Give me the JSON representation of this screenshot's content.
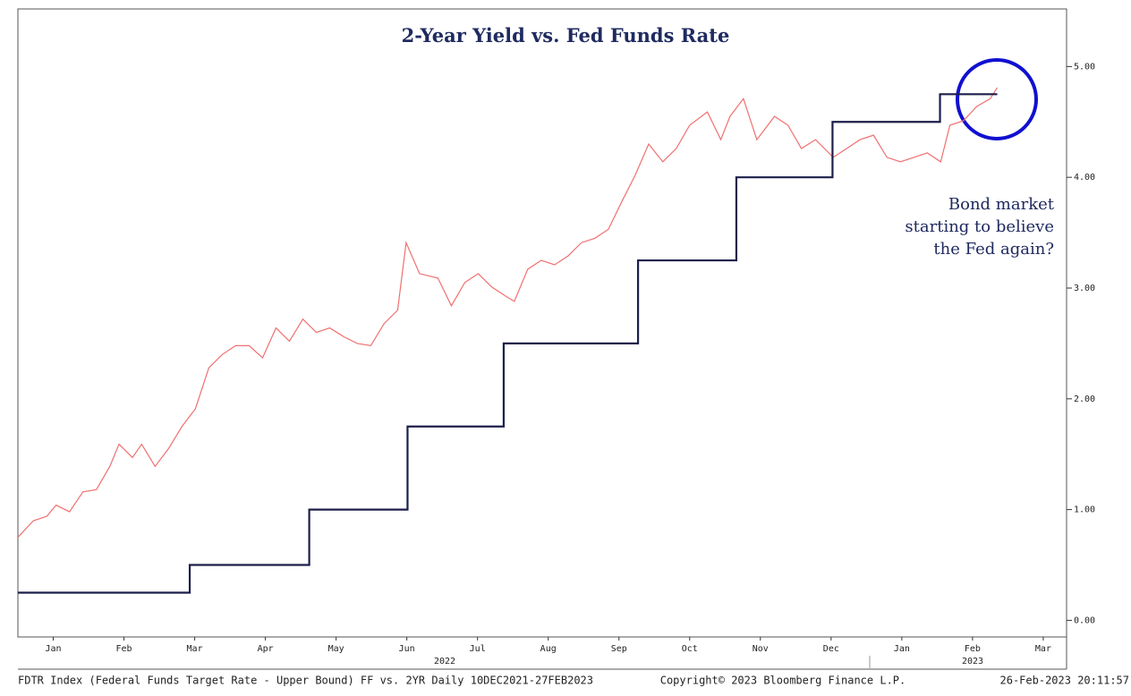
{
  "chart_data": {
    "type": "line",
    "title": "2-Year Yield vs. Fed Funds Rate",
    "annotation": [
      "Bond market",
      "starting to believe",
      "the Fed again?"
    ],
    "footer": [
      "FDTR Index (Federal Funds Target Rate - Upper Bound) FF vs. 2YR  Daily 10DEC2021-27FEB2023",
      "Copyright© 2023 Bloomberg Finance L.P.",
      "26-Feb-2023 20:11:57"
    ],
    "year_labels": [
      "2022",
      "2023"
    ],
    "xlim": [
      0,
      14.83
    ],
    "xticks": [
      {
        "value": 0.5,
        "label": "Jan"
      },
      {
        "value": 1.5,
        "label": "Feb"
      },
      {
        "value": 2.5,
        "label": "Mar"
      },
      {
        "value": 3.5,
        "label": "Apr"
      },
      {
        "value": 4.5,
        "label": "May"
      },
      {
        "value": 5.5,
        "label": "Jun"
      },
      {
        "value": 6.5,
        "label": "Jul"
      },
      {
        "value": 7.5,
        "label": "Aug"
      },
      {
        "value": 8.5,
        "label": "Sep"
      },
      {
        "value": 9.5,
        "label": "Oct"
      },
      {
        "value": 10.5,
        "label": "Nov"
      },
      {
        "value": 11.5,
        "label": "Dec"
      },
      {
        "value": 12.5,
        "label": "Jan"
      },
      {
        "value": 13.5,
        "label": "Feb"
      },
      {
        "value": 14.5,
        "label": "Mar"
      }
    ],
    "ylim": [
      -0.15,
      5.52
    ],
    "yticks": [
      {
        "value": 0,
        "label": "0.00"
      },
      {
        "value": 1,
        "label": "1.00"
      },
      {
        "value": 2,
        "label": "2.00"
      },
      {
        "value": 3,
        "label": "3.00"
      },
      {
        "value": 4,
        "label": "4.00"
      },
      {
        "value": 5,
        "label": "5.00"
      }
    ],
    "series": [
      {
        "color": "#f07070",
        "step": false,
        "x": [
          0,
          0.22,
          0.41,
          0.54,
          0.73,
          0.92,
          1.11,
          1.3,
          1.43,
          1.62,
          1.75,
          1.94,
          2.13,
          2.32,
          2.51,
          2.7,
          2.89,
          3.08,
          3.27,
          3.46,
          3.65,
          3.84,
          4.03,
          4.22,
          4.41,
          4.61,
          4.8,
          4.99,
          5.18,
          5.37,
          5.49,
          5.68,
          5.94,
          6.13,
          6.32,
          6.51,
          6.7,
          6.89,
          7.02,
          7.21,
          7.4,
          7.59,
          7.78,
          7.97,
          8.16,
          8.35,
          8.54,
          8.73,
          8.92,
          9.12,
          9.31,
          9.5,
          9.75,
          9.94,
          10.07,
          10.26,
          10.45,
          10.7,
          10.89,
          11.08,
          11.28,
          11.53,
          11.72,
          11.91,
          12.1,
          12.29,
          12.48,
          12.67,
          12.86,
          13.05,
          13.18,
          13.37,
          13.56,
          13.75,
          13.85
        ],
        "values": [
          0.75,
          0.9,
          0.94,
          1.04,
          0.98,
          1.16,
          1.18,
          1.39,
          1.59,
          1.47,
          1.59,
          1.39,
          1.55,
          1.75,
          1.91,
          2.28,
          2.4,
          2.48,
          2.48,
          2.37,
          2.64,
          2.52,
          2.72,
          2.6,
          2.64,
          2.56,
          2.5,
          2.48,
          2.68,
          2.8,
          3.41,
          3.13,
          3.09,
          2.84,
          3.05,
          3.13,
          3.01,
          2.93,
          2.88,
          3.17,
          3.25,
          3.21,
          3.29,
          3.41,
          3.45,
          3.53,
          3.78,
          4.02,
          4.3,
          4.14,
          4.26,
          4.47,
          4.59,
          4.34,
          4.55,
          4.71,
          4.34,
          4.55,
          4.47,
          4.26,
          4.34,
          4.18,
          4.26,
          4.34,
          4.38,
          4.18,
          4.14,
          4.18,
          4.22,
          4.14,
          4.47,
          4.51,
          4.64,
          4.71,
          4.81
        ]
      },
      {
        "color": "#1c1f4a",
        "step": true,
        "x": [
          0,
          2.43,
          4.12,
          5.51,
          6.87,
          8.77,
          10.16,
          11.52,
          13.04,
          13.85
        ],
        "values": [
          0.25,
          0.5,
          1,
          1.75,
          2.5,
          3.25,
          4,
          4.5,
          4.75,
          4.75
        ]
      }
    ]
  }
}
